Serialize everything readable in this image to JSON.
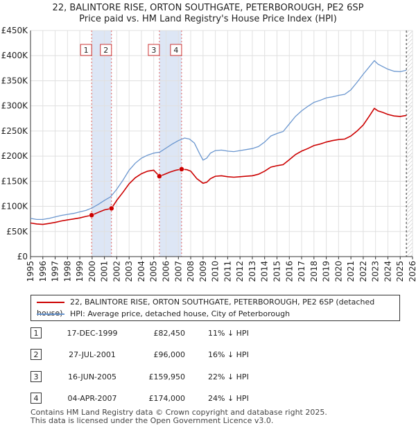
{
  "header": {
    "title_line1": "22, BALINTORE RISE, ORTON SOUTHGATE, PETERBOROUGH, PE2 6SP",
    "title_line2": "Price paid vs. HM Land Registry's House Price Index (HPI)"
  },
  "colors": {
    "property": "#cc0000",
    "hpi": "#6a96cf",
    "band": "#dde6f5",
    "grid": "#e0e0e0"
  },
  "chart_data": {
    "type": "line",
    "ylim": [
      0,
      450000
    ],
    "xlim": [
      1995,
      2026
    ],
    "y_ticks": [
      0,
      50000,
      100000,
      150000,
      200000,
      250000,
      300000,
      350000,
      400000,
      450000
    ],
    "y_tick_labels": [
      "£0",
      "£50K",
      "£100K",
      "£150K",
      "£200K",
      "£250K",
      "£300K",
      "£350K",
      "£400K",
      "£450K"
    ],
    "x_ticks": [
      "1995",
      "1996",
      "1997",
      "1998",
      "1999",
      "2000",
      "2001",
      "2002",
      "2003",
      "2004",
      "2005",
      "2006",
      "2007",
      "2008",
      "2009",
      "2010",
      "2011",
      "2012",
      "2013",
      "2014",
      "2015",
      "2016",
      "2017",
      "2018",
      "2019",
      "2020",
      "2021",
      "2022",
      "2023",
      "2024",
      "2025",
      "2026"
    ],
    "shaded_ranges": [
      [
        1999.96,
        2001.57
      ],
      [
        2005.46,
        2007.26
      ]
    ],
    "future_hatch_from": 2025.5,
    "series": [
      {
        "name": "22, BALINTORE RISE, ORTON SOUTHGATE, PETERBOROUGH, PE2 6SP (detached house)",
        "x": [
          1995,
          1995.5,
          1996,
          1996.5,
          1997,
          1997.5,
          1998,
          1998.5,
          1999,
          1999.5,
          1999.96,
          2000.5,
          2001,
          2001.57,
          2002,
          2002.5,
          2003,
          2003.5,
          2004,
          2004.5,
          2005,
          2005.46,
          2005.8,
          2006.3,
          2006.8,
          2007.26,
          2007.7,
          2008,
          2008.5,
          2009,
          2009.3,
          2009.6,
          2010,
          2010.5,
          2011,
          2011.5,
          2012,
          2012.5,
          2013,
          2013.5,
          2014,
          2014.5,
          2015,
          2015.5,
          2016,
          2016.5,
          2017,
          2017.5,
          2018,
          2018.5,
          2019,
          2019.5,
          2020,
          2020.5,
          2021,
          2021.5,
          2022,
          2022.5,
          2022.9,
          2023.2,
          2023.6,
          2024,
          2024.5,
          2025,
          2025.5
        ],
        "y": [
          67000,
          65000,
          64000,
          66000,
          68000,
          71000,
          73000,
          75000,
          77000,
          80000,
          82450,
          88000,
          93000,
          96000,
          112000,
          128000,
          145000,
          157000,
          165000,
          170000,
          172000,
          159950,
          163000,
          168000,
          172000,
          174000,
          173000,
          170000,
          155000,
          146000,
          148000,
          155000,
          160000,
          161000,
          159000,
          158000,
          159000,
          160000,
          161000,
          164000,
          170000,
          178000,
          181000,
          183000,
          193000,
          203000,
          210000,
          215000,
          221000,
          224000,
          228000,
          231000,
          233000,
          234000,
          240000,
          250000,
          262000,
          280000,
          295000,
          290000,
          287000,
          283000,
          280000,
          279000,
          281000
        ]
      },
      {
        "name": "HPI: Average price, detached house, City of Peterborough",
        "x": [
          1995,
          1995.5,
          1996,
          1996.5,
          1997,
          1997.5,
          1998,
          1998.5,
          1999,
          1999.5,
          2000,
          2000.5,
          2001,
          2001.5,
          2002,
          2002.5,
          2003,
          2003.5,
          2004,
          2004.5,
          2005,
          2005.5,
          2006,
          2006.5,
          2007,
          2007.5,
          2007.9,
          2008.3,
          2008.7,
          2009,
          2009.3,
          2009.6,
          2010,
          2010.5,
          2011,
          2011.5,
          2012,
          2012.5,
          2013,
          2013.5,
          2014,
          2014.5,
          2015,
          2015.5,
          2016,
          2016.5,
          2017,
          2017.5,
          2018,
          2018.5,
          2019,
          2019.5,
          2020,
          2020.5,
          2021,
          2021.5,
          2022,
          2022.5,
          2022.9,
          2023.2,
          2023.6,
          2024,
          2024.5,
          2025,
          2025.5
        ],
        "y": [
          76000,
          74000,
          74000,
          76000,
          79000,
          82000,
          84000,
          86000,
          89000,
          92000,
          97000,
          104000,
          112000,
          119000,
          134000,
          152000,
          172000,
          186000,
          196000,
          202000,
          206000,
          208000,
          216000,
          224000,
          231000,
          236000,
          234000,
          226000,
          206000,
          192000,
          196000,
          206000,
          211000,
          212000,
          210000,
          209000,
          211000,
          213000,
          215000,
          219000,
          228000,
          240000,
          245000,
          249000,
          264000,
          279000,
          290000,
          299000,
          307000,
          311000,
          316000,
          318000,
          321000,
          323000,
          332000,
          347000,
          363000,
          378000,
          390000,
          383000,
          378000,
          373000,
          369000,
          368000,
          371000
        ]
      }
    ],
    "sales": [
      {
        "label": "1",
        "x": 1999.96,
        "y": 82450
      },
      {
        "label": "2",
        "x": 2001.57,
        "y": 96000
      },
      {
        "label": "3",
        "x": 2005.46,
        "y": 159950
      },
      {
        "label": "4",
        "x": 2007.26,
        "y": 174000
      }
    ]
  },
  "legend": {
    "property_label": "22, BALINTORE RISE, ORTON SOUTHGATE, PETERBOROUGH, PE2 6SP (detached house)",
    "hpi_label": "HPI: Average price, detached house, City of Peterborough"
  },
  "sales_table": [
    {
      "num": "1",
      "date": "17-DEC-1999",
      "price": "£82,450",
      "hpi": "11% ↓ HPI"
    },
    {
      "num": "2",
      "date": "27-JUL-2001",
      "price": "£96,000",
      "hpi": "16% ↓ HPI"
    },
    {
      "num": "3",
      "date": "16-JUN-2005",
      "price": "£159,950",
      "hpi": "22% ↓ HPI"
    },
    {
      "num": "4",
      "date": "04-APR-2007",
      "price": "£174,000",
      "hpi": "24% ↓ HPI"
    }
  ],
  "footer": {
    "line1": "Contains HM Land Registry data © Crown copyright and database right 2025.",
    "line2": "This data is licensed under the Open Government Licence v3.0."
  }
}
